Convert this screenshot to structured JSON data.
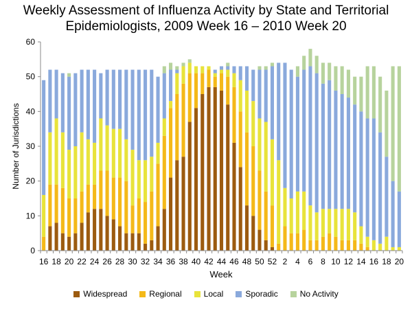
{
  "chart_data": {
    "type": "bar",
    "stacked": true,
    "title_line1": "Weekly Assessment of Influenza Activity by State and Territorial",
    "title_line2": "Epidemiologists, 2009 Week 16 – 2010 Week 20",
    "xlabel": "Week",
    "ylabel": "Number of Jurisdictions",
    "ylim": [
      0,
      60
    ],
    "yticks": [
      0,
      10,
      20,
      30,
      40,
      50,
      60
    ],
    "grid": false,
    "legend_position": "bottom",
    "categories": [
      "16",
      "17",
      "18",
      "19",
      "20",
      "21",
      "22",
      "23",
      "24",
      "25",
      "26",
      "27",
      "28",
      "29",
      "30",
      "31",
      "32",
      "33",
      "34",
      "35",
      "36",
      "37",
      "38",
      "39",
      "40",
      "41",
      "42",
      "43",
      "44",
      "45",
      "46",
      "47",
      "48",
      "49",
      "50",
      "51",
      "52",
      "1",
      "2",
      "3",
      "4",
      "5",
      "6",
      "7",
      "8",
      "9",
      "10",
      "11",
      "12",
      "13",
      "14",
      "15",
      "16",
      "17",
      "18",
      "19",
      "20"
    ],
    "series": [
      {
        "name": "Widespread",
        "color": "#9c5b10",
        "values": [
          0,
          7,
          8,
          5,
          4,
          5,
          8,
          11,
          12,
          12,
          10,
          9,
          7,
          5,
          5,
          5,
          2,
          3,
          7,
          12,
          21,
          26,
          27,
          37,
          41,
          45,
          47,
          47,
          46,
          42,
          31,
          24,
          13,
          10,
          6,
          3,
          1,
          0,
          0,
          0,
          0,
          0,
          0,
          0,
          0,
          0,
          0,
          0,
          0,
          0,
          0,
          0,
          0,
          0,
          0,
          0,
          0
        ]
      },
      {
        "name": "Regional",
        "color": "#f4b919",
        "values": [
          4,
          12,
          11,
          13,
          11,
          10,
          9,
          8,
          7,
          11,
          13,
          12,
          14,
          15,
          8,
          10,
          12,
          14,
          18,
          21,
          20,
          19,
          21,
          14,
          10,
          6,
          5,
          3,
          5,
          8,
          16,
          16,
          21,
          20,
          17,
          14,
          12,
          2,
          7,
          5,
          5,
          6,
          3,
          3,
          4,
          5,
          4,
          3,
          3,
          3,
          2,
          1,
          0,
          0,
          0,
          0,
          0
        ]
      },
      {
        "name": "Local",
        "color": "#e8e33b",
        "values": [
          12,
          15,
          19,
          16,
          14,
          15,
          17,
          13,
          12,
          15,
          13,
          14,
          14,
          12,
          16,
          11,
          12,
          10,
          6,
          5,
          2,
          6,
          5,
          3,
          2,
          2,
          1,
          1,
          1,
          2,
          4,
          9,
          12,
          13,
          15,
          20,
          19,
          24,
          11,
          10,
          12,
          11,
          10,
          8,
          8,
          7,
          8,
          9,
          9,
          8,
          5,
          3,
          3,
          2,
          4,
          1,
          1
        ]
      },
      {
        "name": "Sporadic",
        "color": "#8aa9dc",
        "values": [
          33,
          18,
          14,
          17,
          21,
          21,
          18,
          20,
          21,
          13,
          16,
          17,
          17,
          20,
          23,
          26,
          26,
          25,
          19,
          13,
          9,
          1,
          0,
          0,
          0,
          0,
          0,
          1,
          1,
          1,
          2,
          4,
          7,
          9,
          14,
          15,
          21,
          28,
          36,
          37,
          33,
          35,
          40,
          40,
          36,
          37,
          34,
          33,
          32,
          31,
          33,
          34,
          35,
          32,
          23,
          19,
          16
        ]
      },
      {
        "name": "No Activity",
        "color": "#b7d39d",
        "values": [
          0,
          0,
          0,
          0,
          1,
          0,
          0,
          0,
          0,
          0,
          0,
          0,
          0,
          0,
          0,
          0,
          0,
          0,
          0,
          2,
          2,
          1,
          1,
          1,
          0,
          0,
          0,
          0,
          0,
          1,
          0,
          0,
          0,
          0,
          1,
          1,
          1,
          0,
          0,
          0,
          3,
          4,
          5,
          5,
          6,
          5,
          7,
          8,
          8,
          8,
          10,
          15,
          15,
          16,
          19,
          33,
          36
        ]
      }
    ]
  }
}
